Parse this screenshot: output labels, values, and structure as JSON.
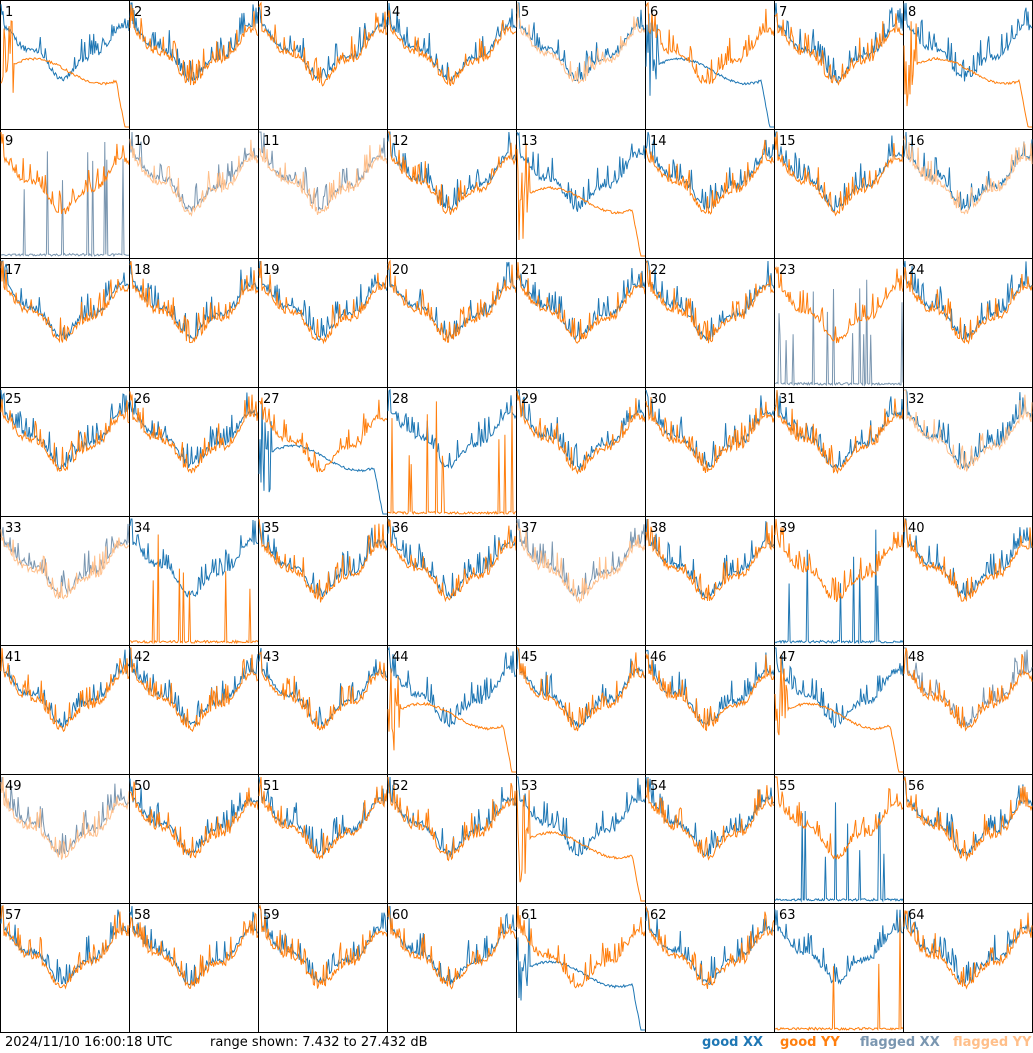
{
  "footer": {
    "timestamp": "2024/11/10 16:00:18 UTC",
    "range_text": "range shown: 7.432 to 27.432 dB"
  },
  "legend": {
    "good_xx": "good XX",
    "good_yy": "good YY",
    "flagged_xx": "flagged XX",
    "flagged_yy": "flagged YY"
  },
  "colors": {
    "good_xx": "#1f77b4",
    "good_yy": "#ff7f0e",
    "flagged_xx": "#7a96b0",
    "flagged_yy": "#ffbf8a",
    "border": "#000000"
  },
  "chart_data": {
    "type": "line",
    "grid": "8x8 small multiples",
    "y_range_db": [
      7.432,
      27.432
    ],
    "panel_labels": [
      "1",
      "2",
      "3",
      "4",
      "5",
      "6",
      "7",
      "8",
      "9",
      "10",
      "11",
      "12",
      "13",
      "14",
      "15",
      "16",
      "17",
      "18",
      "19",
      "20",
      "21",
      "22",
      "23",
      "24",
      "25",
      "26",
      "27",
      "28",
      "29",
      "30",
      "31",
      "32",
      "33",
      "34",
      "35",
      "36",
      "37",
      "38",
      "39",
      "40",
      "41",
      "42",
      "43",
      "44",
      "45",
      "46",
      "47",
      "48",
      "49",
      "50",
      "51",
      "52",
      "53",
      "54",
      "55",
      "56",
      "57",
      "58",
      "59",
      "60",
      "61",
      "62",
      "63",
      "64"
    ],
    "flags": {
      "flagged_xx_panels": [
        9,
        10,
        11,
        23,
        33,
        37,
        48,
        49
      ],
      "flagged_yy_panels": [
        5,
        10,
        11,
        16,
        32,
        33,
        37,
        49
      ]
    },
    "series": [
      "good XX",
      "good YY",
      "flagged XX",
      "flagged YY"
    ]
  }
}
